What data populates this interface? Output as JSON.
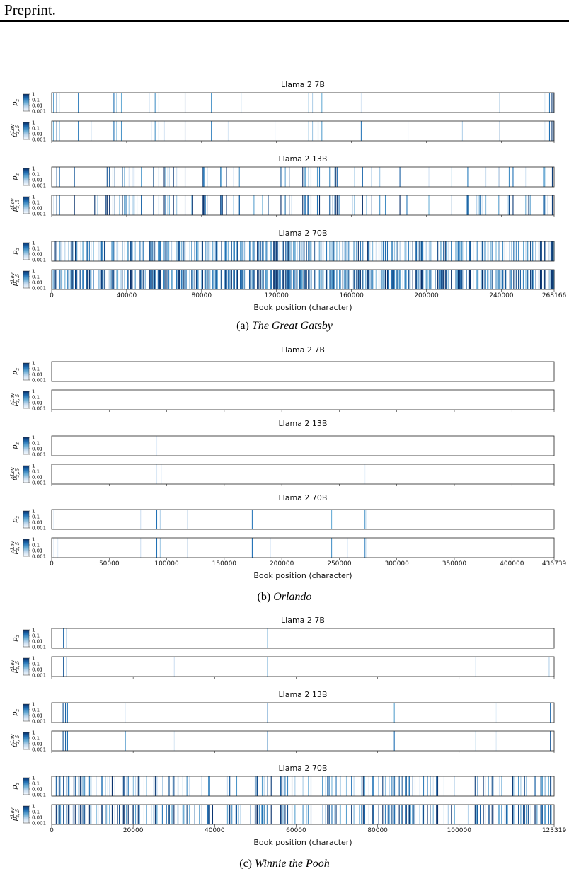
{
  "header": {
    "text": "Preprint."
  },
  "figure": {
    "cbar_ticks": [
      "1",
      "0.1",
      "0.01",
      "0.001"
    ],
    "xlabel": "Book position (character)",
    "row_labels": {
      "pz_main": "p",
      "pz_sub": "z",
      "plev_main": "p̂",
      "plev_sup": "Lev",
      "plev_sub": "z,.5"
    },
    "blues": [
      "#f7fbff",
      "#c6dbef",
      "#6baed6",
      "#2171b5",
      "#08306b"
    ]
  },
  "chart_data": [
    {
      "type": "heatmap",
      "caption_label": "(a) ",
      "caption_title": "The Great Gatsby",
      "book_length": 268166,
      "xticks": [
        0,
        40000,
        80000,
        120000,
        160000,
        200000,
        240000,
        268166
      ],
      "xlabel": "Book position (character)",
      "colorbar": [
        "1",
        "0.1",
        "0.01",
        "0.001"
      ],
      "models": [
        {
          "title": "Llama 2 7B",
          "pz": [
            [
              800,
              0.6
            ],
            [
              2500,
              0.85
            ],
            [
              3800,
              0.5
            ],
            [
              14000,
              0.7
            ],
            [
              33000,
              0.75
            ],
            [
              34500,
              0.4
            ],
            [
              37000,
              0.5
            ],
            [
              52000,
              0.15
            ],
            [
              55000,
              0.6
            ],
            [
              57000,
              0.4
            ],
            [
              71000,
              0.9
            ],
            [
              85000,
              0.6
            ],
            [
              101000,
              0.15
            ],
            [
              137000,
              0.55
            ],
            [
              139000,
              0.3
            ],
            [
              144000,
              0.5
            ],
            [
              165000,
              0.15
            ],
            [
              239000,
              0.75
            ],
            [
              263000,
              0.15
            ],
            [
              265500,
              0.7
            ],
            [
              266800,
              0.95
            ],
            [
              267500,
              0.9
            ]
          ],
          "lev": [
            [
              700,
              0.5
            ],
            [
              2500,
              0.85
            ],
            [
              3900,
              0.6
            ],
            [
              14000,
              0.7
            ],
            [
              21000,
              0.15
            ],
            [
              33000,
              0.75
            ],
            [
              34500,
              0.45
            ],
            [
              37000,
              0.6
            ],
            [
              53000,
              0.2
            ],
            [
              55000,
              0.6
            ],
            [
              57000,
              0.55
            ],
            [
              60000,
              0.15
            ],
            [
              71000,
              0.9
            ],
            [
              85000,
              0.65
            ],
            [
              94000,
              0.15
            ],
            [
              119000,
              0.15
            ],
            [
              137000,
              0.55
            ],
            [
              139000,
              0.35
            ],
            [
              142000,
              0.5
            ],
            [
              144000,
              0.55
            ],
            [
              165000,
              0.7
            ],
            [
              190000,
              0.15
            ],
            [
              219000,
              0.3
            ],
            [
              239000,
              0.8
            ],
            [
              263000,
              0.15
            ],
            [
              265500,
              0.75
            ],
            [
              266800,
              0.95
            ],
            [
              267500,
              0.9
            ]
          ]
        },
        {
          "title": "Llama 2 13B",
          "density": 0.09,
          "seed": 31,
          "fixed": [
            [
              2500,
              0.9
            ],
            [
              4000,
              0.8
            ],
            [
              33500,
              0.85
            ],
            [
              57000,
              0.8
            ],
            [
              71000,
              0.9
            ],
            [
              239000,
              0.9
            ],
            [
              267000,
              0.95
            ]
          ]
        },
        {
          "title": "Llama 2 70B",
          "density": 0.55,
          "seed": 73,
          "fixed": [
            [
              2500,
              0.9
            ],
            [
              33500,
              0.9
            ],
            [
              71000,
              0.9
            ],
            [
              239000,
              0.9
            ],
            [
              267000,
              0.95
            ]
          ]
        }
      ]
    },
    {
      "type": "heatmap",
      "caption_label": "(b) ",
      "caption_title": "Orlando",
      "book_length": 436739,
      "xticks": [
        0,
        50000,
        100000,
        150000,
        200000,
        250000,
        300000,
        350000,
        400000,
        436739
      ],
      "xlabel": "Book position (character)",
      "colorbar": [
        "1",
        "0.1",
        "0.01",
        "0.001"
      ],
      "models": [
        {
          "title": "Llama 2 7B",
          "pz": [],
          "lev": []
        },
        {
          "title": "Llama 2 13B",
          "pz": [
            [
              91000,
              0.1
            ]
          ],
          "lev": [
            [
              91000,
              0.15
            ],
            [
              95000,
              0.1
            ],
            [
              272000,
              0.08
            ]
          ]
        },
        {
          "title": "Llama 2 70B",
          "pz": [
            [
              1500,
              0.15
            ],
            [
              77000,
              0.2
            ],
            [
              91000,
              0.75
            ],
            [
              94000,
              0.3
            ],
            [
              118000,
              0.75
            ],
            [
              174000,
              0.7
            ],
            [
              243000,
              0.5
            ],
            [
              272000,
              0.6
            ],
            [
              273500,
              0.3
            ]
          ],
          "lev": [
            [
              1500,
              0.15
            ],
            [
              5000,
              0.1
            ],
            [
              77000,
              0.2
            ],
            [
              91000,
              0.75
            ],
            [
              94000,
              0.35
            ],
            [
              118000,
              0.8
            ],
            [
              174000,
              0.75
            ],
            [
              190000,
              0.1
            ],
            [
              243000,
              0.6
            ],
            [
              257000,
              0.1
            ],
            [
              272000,
              0.65
            ],
            [
              273500,
              0.3
            ]
          ]
        }
      ]
    },
    {
      "type": "heatmap",
      "caption_label": "(c) ",
      "caption_title": "Winnie the Pooh",
      "book_length": 123319,
      "xticks": [
        0,
        20000,
        40000,
        60000,
        80000,
        100000,
        123319
      ],
      "xlabel": "Book position (character)",
      "colorbar": [
        "1",
        "0.1",
        "0.01",
        "0.001"
      ],
      "models": [
        {
          "title": "Llama 2 7B",
          "pz": [
            [
              2800,
              0.8
            ],
            [
              3600,
              0.7
            ],
            [
              52900,
              0.55
            ]
          ],
          "lev": [
            [
              2800,
              0.85
            ],
            [
              3600,
              0.75
            ],
            [
              30000,
              0.2
            ],
            [
              52900,
              0.6
            ],
            [
              104000,
              0.35
            ],
            [
              122000,
              0.3
            ]
          ]
        },
        {
          "title": "Llama 2 13B",
          "pz": [
            [
              2700,
              0.85
            ],
            [
              3300,
              0.8
            ],
            [
              3800,
              0.7
            ],
            [
              18000,
              0.1
            ],
            [
              52900,
              0.7
            ],
            [
              84000,
              0.55
            ],
            [
              109000,
              0.1
            ],
            [
              122300,
              0.8
            ]
          ],
          "lev": [
            [
              2700,
              0.85
            ],
            [
              3300,
              0.8
            ],
            [
              3800,
              0.75
            ],
            [
              18000,
              0.6
            ],
            [
              30000,
              0.15
            ],
            [
              52900,
              0.75
            ],
            [
              84000,
              0.75
            ],
            [
              104000,
              0.45
            ],
            [
              109000,
              0.15
            ],
            [
              122300,
              0.85
            ]
          ]
        },
        {
          "title": "Llama 2 70B",
          "density": 0.22,
          "seed": 17,
          "fixed": [
            [
              2800,
              0.9
            ],
            [
              3600,
              0.85
            ],
            [
              52900,
              0.85
            ],
            [
              84000,
              0.8
            ],
            [
              122300,
              0.9
            ]
          ]
        }
      ]
    }
  ]
}
